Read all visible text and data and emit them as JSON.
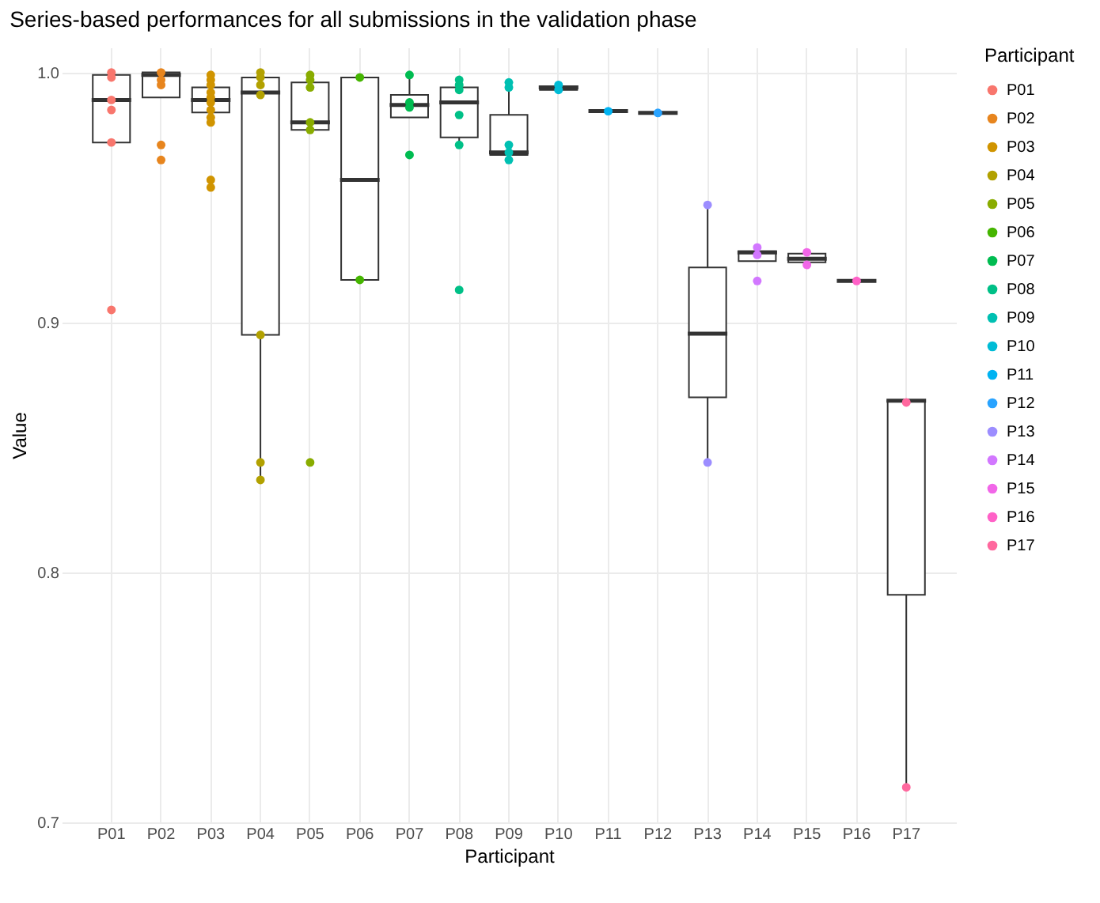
{
  "chart_data": {
    "type": "box",
    "title": "Series-based performances for all submissions in the validation phase",
    "xlabel": "Participant",
    "ylabel": "Value",
    "legend_title": "Participant",
    "categories": [
      "P01",
      "P02",
      "P03",
      "P04",
      "P05",
      "P06",
      "P07",
      "P08",
      "P09",
      "P10",
      "P11",
      "P12",
      "P13",
      "P14",
      "P15",
      "P16",
      "P17"
    ],
    "boxes": [
      {
        "low": 0.972,
        "q1": 0.972,
        "median": 0.989,
        "q3": 0.999,
        "high": 1.0
      },
      {
        "low": 0.99,
        "q1": 0.99,
        "median": 0.999,
        "q3": 1.0,
        "high": 1.0
      },
      {
        "low": 0.98,
        "q1": 0.984,
        "median": 0.989,
        "q3": 0.994,
        "high": 0.999
      },
      {
        "low": 0.837,
        "q1": 0.895,
        "median": 0.992,
        "q3": 0.998,
        "high": 1.0
      },
      {
        "low": 0.977,
        "q1": 0.977,
        "median": 0.98,
        "q3": 0.996,
        "high": 0.999
      },
      {
        "low": 0.917,
        "q1": 0.917,
        "median": 0.957,
        "q3": 0.998,
        "high": 0.998
      },
      {
        "low": 0.982,
        "q1": 0.982,
        "median": 0.987,
        "q3": 0.991,
        "high": 0.999
      },
      {
        "low": 0.971,
        "q1": 0.974,
        "median": 0.988,
        "q3": 0.994,
        "high": 0.997
      },
      {
        "low": 0.965,
        "q1": 0.967,
        "median": 0.968,
        "q3": 0.983,
        "high": 0.996
      },
      {
        "low": 0.993,
        "q1": 0.993,
        "median": 0.994,
        "q3": 0.9945,
        "high": 0.995
      },
      {
        "low": 0.9845,
        "q1": 0.9845,
        "median": 0.9845,
        "q3": 0.9845,
        "high": 0.9845
      },
      {
        "low": 0.9838,
        "q1": 0.9838,
        "median": 0.9838,
        "q3": 0.9838,
        "high": 0.9838
      },
      {
        "low": 0.844,
        "q1": 0.87,
        "median": 0.8955,
        "q3": 0.922,
        "high": 0.947
      },
      {
        "low": 0.9245,
        "q1": 0.9245,
        "median": 0.928,
        "q3": 0.9285,
        "high": 0.93
      },
      {
        "low": 0.923,
        "q1": 0.924,
        "median": 0.9255,
        "q3": 0.9275,
        "high": 0.928
      },
      {
        "low": 0.9166,
        "q1": 0.9166,
        "median": 0.9166,
        "q3": 0.9166,
        "high": 0.9166
      },
      {
        "low": 0.714,
        "q1": 0.791,
        "median": 0.8687,
        "q3": 0.8687,
        "high": 0.8687
      }
    ],
    "color": "#333333",
    "ylim": [
      0.7,
      1.01
    ],
    "yticks": [
      0.7,
      0.8,
      0.9,
      {
        "value": 1,
        "label": "1.0"
      }
    ],
    "grid": true,
    "legend": "right",
    "marker": "circle",
    "series": [
      {
        "type": "scatter",
        "name": "P01",
        "color": "#f8766d",
        "x": [
          "P01",
          "P01",
          "P01",
          "P01",
          "P01",
          "P01"
        ],
        "values": [
          1.0,
          0.998,
          0.989,
          0.985,
          0.972,
          0.905
        ]
      },
      {
        "type": "scatter",
        "name": "P02",
        "color": "#e7851e",
        "x": [
          "P02",
          "P02",
          "P02",
          "P02",
          "P02"
        ],
        "values": [
          1.0,
          0.997,
          0.995,
          0.971,
          0.965
        ]
      },
      {
        "type": "scatter",
        "name": "P03",
        "color": "#d09400",
        "x": [
          "P03",
          "P03",
          "P03",
          "P03",
          "P03",
          "P03",
          "P03",
          "P03",
          "P03",
          "P03",
          "P03"
        ],
        "values": [
          0.999,
          0.997,
          0.995,
          0.992,
          0.99,
          0.988,
          0.985,
          0.982,
          0.98,
          0.957,
          0.954
        ]
      },
      {
        "type": "scatter",
        "name": "P04",
        "color": "#b2a100",
        "x": [
          "P04",
          "P04",
          "P04",
          "P04",
          "P04",
          "P04",
          "P04"
        ],
        "values": [
          1.0,
          0.998,
          0.995,
          0.991,
          0.895,
          0.844,
          0.837
        ]
      },
      {
        "type": "scatter",
        "name": "P05",
        "color": "#89ac00",
        "x": [
          "P05",
          "P05",
          "P05",
          "P05",
          "P05",
          "P05"
        ],
        "values": [
          0.999,
          0.997,
          0.994,
          0.98,
          0.977,
          0.844
        ]
      },
      {
        "type": "scatter",
        "name": "P06",
        "color": "#45b500",
        "x": [
          "P06",
          "P06"
        ],
        "values": [
          0.998,
          0.917
        ]
      },
      {
        "type": "scatter",
        "name": "P07",
        "color": "#00bc51",
        "x": [
          "P07",
          "P07",
          "P07",
          "P07"
        ],
        "values": [
          0.999,
          0.988,
          0.986,
          0.967
        ]
      },
      {
        "type": "scatter",
        "name": "P08",
        "color": "#00c087",
        "x": [
          "P08",
          "P08",
          "P08",
          "P08",
          "P08",
          "P08"
        ],
        "values": [
          0.997,
          0.995,
          0.993,
          0.983,
          0.971,
          0.913
        ]
      },
      {
        "type": "scatter",
        "name": "P09",
        "color": "#00c0b2",
        "x": [
          "P09",
          "P09",
          "P09",
          "P09",
          "P09"
        ],
        "values": [
          0.996,
          0.994,
          0.971,
          0.968,
          0.965
        ]
      },
      {
        "type": "scatter",
        "name": "P10",
        "color": "#00bcd6",
        "x": [
          "P10",
          "P10"
        ],
        "values": [
          0.995,
          0.993
        ]
      },
      {
        "type": "scatter",
        "name": "P11",
        "color": "#00b3f2",
        "x": [
          "P11"
        ],
        "values": [
          0.9845
        ]
      },
      {
        "type": "scatter",
        "name": "P12",
        "color": "#29a3ff",
        "x": [
          "P12"
        ],
        "values": [
          0.9838
        ]
      },
      {
        "type": "scatter",
        "name": "P13",
        "color": "#9c8dff",
        "x": [
          "P13",
          "P13"
        ],
        "values": [
          0.947,
          0.844
        ]
      },
      {
        "type": "scatter",
        "name": "P14",
        "color": "#d277ff",
        "x": [
          "P14",
          "P14",
          "P14"
        ],
        "values": [
          0.93,
          0.927,
          0.9166
        ]
      },
      {
        "type": "scatter",
        "name": "P15",
        "color": "#f166e8",
        "x": [
          "P15",
          "P15"
        ],
        "values": [
          0.928,
          0.923
        ]
      },
      {
        "type": "scatter",
        "name": "P16",
        "color": "#ff61c7",
        "x": [
          "P16"
        ],
        "values": [
          0.9166
        ]
      },
      {
        "type": "scatter",
        "name": "P17",
        "color": "#ff689e",
        "x": [
          "P17",
          "P17"
        ],
        "values": [
          0.868,
          0.714
        ]
      }
    ]
  }
}
